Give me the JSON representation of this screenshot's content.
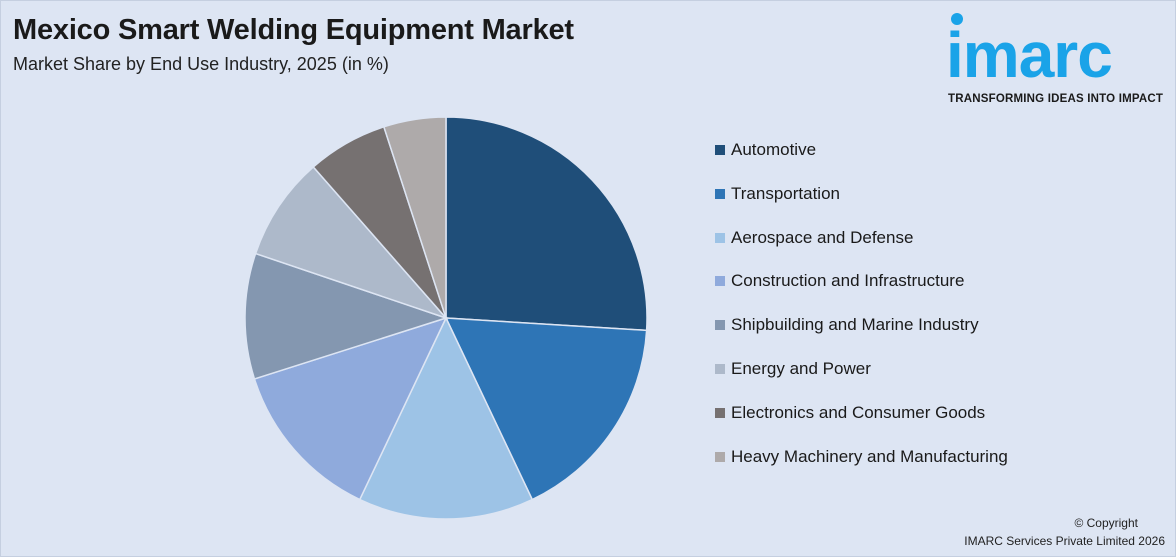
{
  "header": {
    "title": "Mexico Smart Welding Equipment Market",
    "subtitle": "Market Share by End Use Industry, 2025 (in %)"
  },
  "logo": {
    "wordmark": "imarc",
    "tagline": "TRANSFORMING IDEAS INTO IMPACT",
    "color": "#1aa3e8"
  },
  "chart_data": {
    "type": "pie",
    "title": "Mexico Smart Welding Equipment Market",
    "subtitle": "Market Share by End Use Industry, 2025 (in %)",
    "legend_position": "right",
    "categories": [
      "Automotive",
      "Transportation",
      "Aerospace and Defense",
      "Construction and Infrastructure",
      "Shipbuilding and Marine Industry",
      "Energy and Power",
      "Electronics and Consumer Goods",
      "Heavy Machinery and Manufacturing"
    ],
    "values": [
      26.5,
      17.3,
      14.4,
      13.3,
      10.3,
      8.5,
      6.6,
      5.1
    ],
    "colors": [
      "#1f4e79",
      "#2e75b6",
      "#9dc3e6",
      "#8faadc",
      "#8497b0",
      "#adb9ca",
      "#767171",
      "#aeaaaa"
    ]
  },
  "footer": {
    "copyright": "© Copyright",
    "company": "IMARC Services Private Limited 2026"
  }
}
